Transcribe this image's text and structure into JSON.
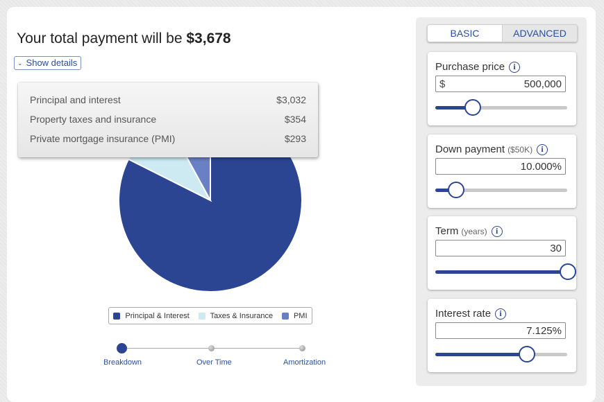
{
  "summary": {
    "prefix": "Your total payment will be",
    "amount": "$3,678",
    "details_toggle": "Show details"
  },
  "breakdown": [
    {
      "label": "Principal and interest",
      "value": "$3,032"
    },
    {
      "label": "Property taxes and insurance",
      "value": "$354"
    },
    {
      "label": "Private mortgage insurance (PMI)",
      "value": "$293"
    }
  ],
  "chart_data": {
    "type": "pie",
    "series": [
      {
        "name": "Principal & Interest",
        "value": 3032,
        "color": "#2b4593"
      },
      {
        "name": "Taxes & Insurance",
        "value": 354,
        "color": "#cde9f2"
      },
      {
        "name": "PMI",
        "value": 293,
        "color": "#6a80c4"
      }
    ],
    "legend": [
      "Principal & Interest",
      "Taxes & Insurance",
      "PMI"
    ]
  },
  "view_tabs": [
    {
      "label": "Breakdown",
      "active": true
    },
    {
      "label": "Over Time",
      "active": false
    },
    {
      "label": "Amortization",
      "active": false
    }
  ],
  "mode_toggle": {
    "basic": "BASIC",
    "advanced": "ADVANCED"
  },
  "inputs": {
    "purchase_price": {
      "label": "Purchase price",
      "prefix": "$",
      "value": "500,000",
      "slider": 0.28
    },
    "down_payment": {
      "label": "Down payment",
      "sublabel": "($50K)",
      "value": "10.000",
      "unit": "%",
      "slider": 0.15
    },
    "term": {
      "label": "Term",
      "sublabel": "(years)",
      "value": "30",
      "slider": 1.0
    },
    "interest_rate": {
      "label": "Interest rate",
      "value": "7.125",
      "unit": "%",
      "slider": 0.69
    }
  },
  "icons": {
    "info": "info-icon",
    "chevron": "chevron-down-icon"
  },
  "colors": {
    "accent": "#2b4593",
    "link": "#2a4ea0"
  }
}
